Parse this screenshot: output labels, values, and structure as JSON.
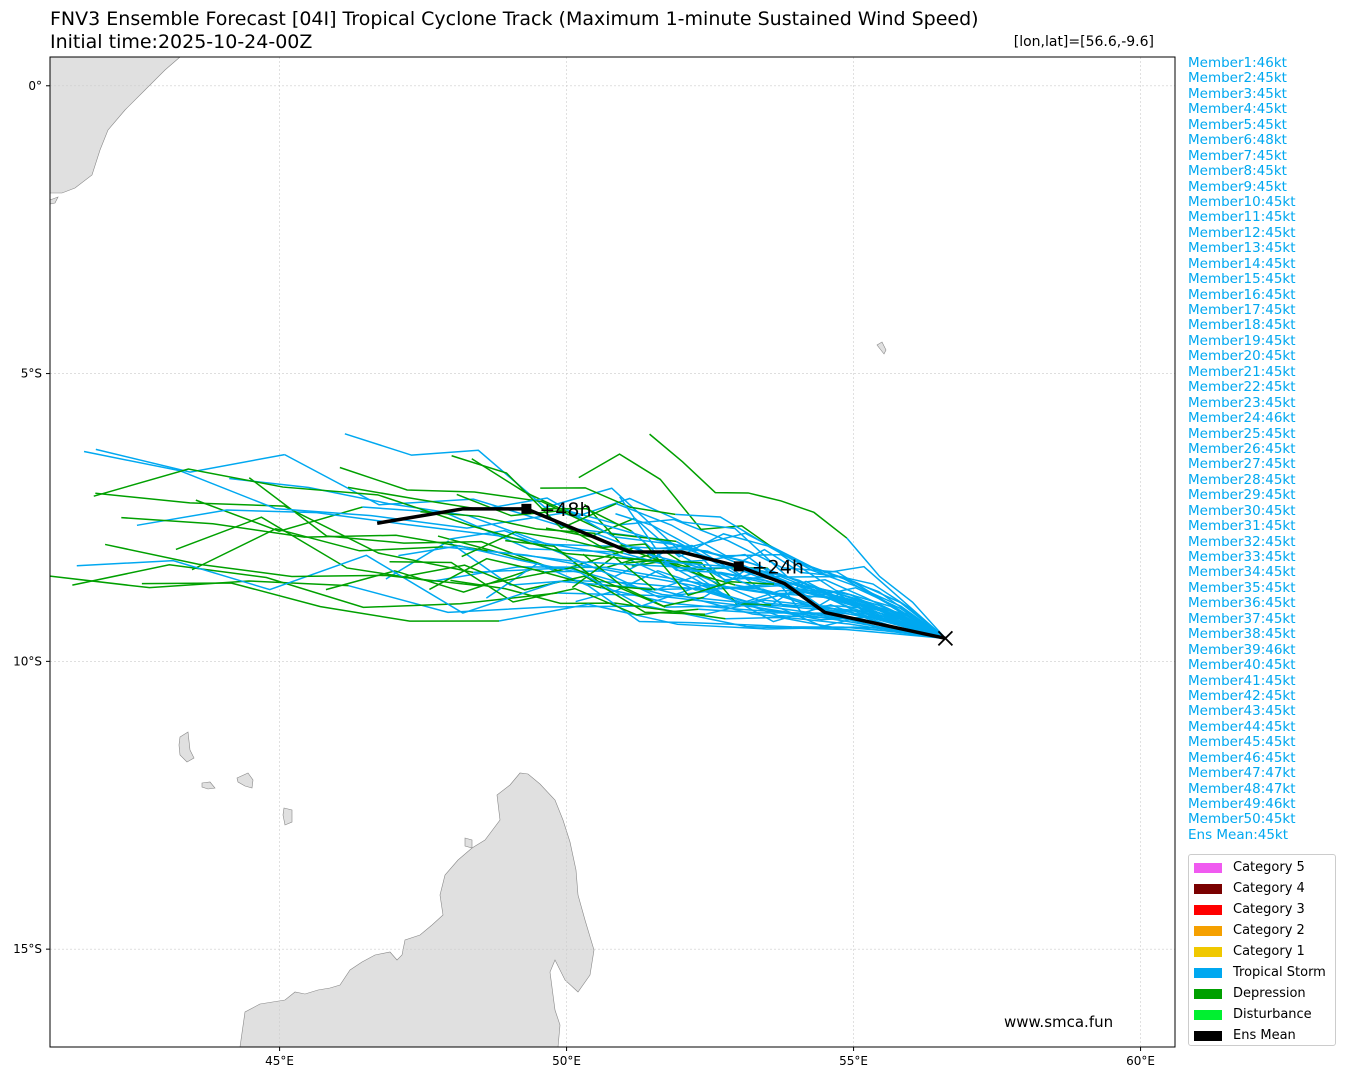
{
  "title": "FNV3 Ensemble Forecast [04I] Tropical Cyclone Track (Maximum 1-minute Sustained Wind Speed)",
  "subtitle": "Initial time:2025-10-24-00Z",
  "coord_readout": "[lon,lat]=[56.6,-9.6]",
  "website": "www.smca.fun",
  "map": {
    "lon_range": [
      41,
      60.6
    ],
    "lat_range": [
      -16.7,
      0.5
    ],
    "lon_ticks": [
      {
        "v": 45,
        "label": "45°E"
      },
      {
        "v": 50,
        "label": "50°E"
      },
      {
        "v": 55,
        "label": "55°E"
      },
      {
        "v": 60,
        "label": "60°E"
      }
    ],
    "lat_ticks": [
      {
        "v": 0,
        "label": "0°"
      },
      {
        "v": -5,
        "label": "5°S"
      },
      {
        "v": -10,
        "label": "10°S"
      },
      {
        "v": -15,
        "label": "15°S"
      }
    ],
    "land_color": "#e0e0e0",
    "grid": true,
    "ens_mean_track": [
      [
        56.6,
        -9.6
      ],
      [
        55.9,
        -9.45
      ],
      [
        54.5,
        -9.15
      ],
      [
        53.8,
        -8.65
      ],
      [
        53.0,
        -8.35
      ],
      [
        52.0,
        -8.1
      ],
      [
        51.1,
        -8.1
      ],
      [
        49.3,
        -7.35
      ],
      [
        48.2,
        -7.35
      ],
      [
        46.7,
        -7.6
      ]
    ],
    "time_marks": [
      {
        "lon": 53.0,
        "lat": -8.35,
        "label": "+24h"
      },
      {
        "lon": 49.3,
        "lat": -7.35,
        "label": "+48h"
      }
    ],
    "start_point": {
      "lon": 56.6,
      "lat": -9.6
    }
  },
  "members": [
    "Member1:46kt",
    "Member2:45kt",
    "Member3:45kt",
    "Member4:45kt",
    "Member5:45kt",
    "Member6:48kt",
    "Member7:45kt",
    "Member8:45kt",
    "Member9:45kt",
    "Member10:45kt",
    "Member11:45kt",
    "Member12:45kt",
    "Member13:45kt",
    "Member14:45kt",
    "Member15:45kt",
    "Member16:45kt",
    "Member17:45kt",
    "Member18:45kt",
    "Member19:45kt",
    "Member20:45kt",
    "Member21:45kt",
    "Member22:45kt",
    "Member23:45kt",
    "Member24:46kt",
    "Member25:45kt",
    "Member26:45kt",
    "Member27:45kt",
    "Member28:45kt",
    "Member29:45kt",
    "Member30:45kt",
    "Member31:45kt",
    "Member32:45kt",
    "Member33:45kt",
    "Member34:45kt",
    "Member35:45kt",
    "Member36:45kt",
    "Member37:45kt",
    "Member38:45kt",
    "Member39:46kt",
    "Member40:45kt",
    "Member41:45kt",
    "Member42:45kt",
    "Member43:45kt",
    "Member44:45kt",
    "Member45:45kt",
    "Member46:45kt",
    "Member47:47kt",
    "Member48:47kt",
    "Member49:46kt",
    "Member50:45kt",
    "Ens Mean:45kt"
  ],
  "legend": [
    {
      "label": "Category 5",
      "color": "#f05af0"
    },
    {
      "label": "Category 4",
      "color": "#7a0000"
    },
    {
      "label": "Category 3",
      "color": "#ff0000"
    },
    {
      "label": "Category 2",
      "color": "#f5a000"
    },
    {
      "label": "Category 1",
      "color": "#f0c800"
    },
    {
      "label": "Tropical Storm",
      "color": "#00a8f0"
    },
    {
      "label": "Depression",
      "color": "#00a000"
    },
    {
      "label": "Disturbance",
      "color": "#00f030"
    },
    {
      "label": "Ens Mean",
      "color": "#000000"
    }
  ]
}
